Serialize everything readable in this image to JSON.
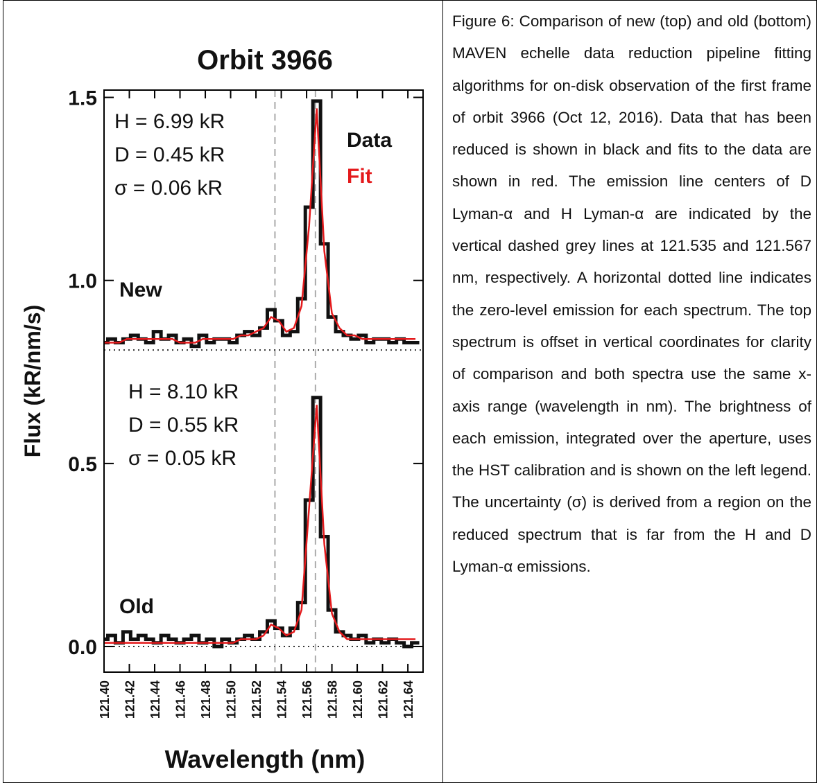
{
  "chart_data": {
    "type": "line",
    "title": "Orbit 3966",
    "ylabel": "Flux (kR/nm/s)",
    "xlabel": "Wavelength (nm)",
    "xlim": [
      121.4,
      121.652
    ],
    "ylim": [
      -0.07,
      1.52
    ],
    "xticks": [
      {
        "value": 121.4,
        "label": "121.40"
      },
      121.42,
      121.44,
      121.46,
      121.48,
      {
        "value": 121.5,
        "label": "121.50"
      },
      121.52,
      121.54,
      121.56,
      121.58,
      {
        "value": 121.6,
        "label": "121.60"
      },
      121.62,
      121.64
    ],
    "yticks": [
      {
        "value": 0,
        "label": "0.0"
      },
      0.5,
      {
        "value": 1,
        "label": "1.0"
      },
      1.5
    ],
    "grid": false,
    "vlines": [
      121.535,
      121.567
    ],
    "legend": [
      {
        "name": "Data",
        "color": "#111111"
      },
      {
        "name": "Fit",
        "color": "#e41a1c"
      }
    ],
    "x": [
      121.4,
      121.406,
      121.412,
      121.418,
      121.424,
      121.43,
      121.436,
      121.442,
      121.448,
      121.454,
      121.46,
      121.466,
      121.472,
      121.478,
      121.484,
      121.49,
      121.496,
      121.502,
      121.508,
      121.514,
      121.52,
      121.526,
      121.532,
      121.538,
      121.544,
      121.55,
      121.556,
      121.562,
      121.568,
      121.574,
      121.58,
      121.586,
      121.592,
      121.598,
      121.604,
      121.61,
      121.616,
      121.622,
      121.628,
      121.634,
      121.64,
      121.646
    ],
    "panels": [
      {
        "label": "New",
        "notes": [
          "H = 6.99 kR",
          "D = 0.45 kR",
          "σ = 0.06 kR"
        ],
        "zero": 0.81,
        "data": [
          0.83,
          0.84,
          0.83,
          0.84,
          0.85,
          0.84,
          0.83,
          0.86,
          0.84,
          0.85,
          0.83,
          0.84,
          0.82,
          0.85,
          0.83,
          0.84,
          0.84,
          0.83,
          0.85,
          0.86,
          0.85,
          0.87,
          0.92,
          0.89,
          0.85,
          0.86,
          0.95,
          1.2,
          1.49,
          1.1,
          0.9,
          0.86,
          0.85,
          0.84,
          0.85,
          0.83,
          0.84,
          0.84,
          0.83,
          0.84,
          0.83,
          0.83
        ],
        "fit": [
          0.83,
          0.83,
          0.83,
          0.84,
          0.84,
          0.84,
          0.84,
          0.84,
          0.84,
          0.84,
          0.83,
          0.83,
          0.83,
          0.84,
          0.84,
          0.84,
          0.84,
          0.84,
          0.85,
          0.85,
          0.86,
          0.87,
          0.9,
          0.89,
          0.86,
          0.87,
          0.93,
          1.15,
          1.47,
          1.08,
          0.91,
          0.87,
          0.85,
          0.85,
          0.84,
          0.84,
          0.84,
          0.84,
          0.84,
          0.84,
          0.84,
          0.84
        ]
      },
      {
        "label": "Old",
        "notes": [
          "H = 8.10 kR",
          "D = 0.55 kR",
          "σ = 0.05 kR"
        ],
        "zero": 0,
        "data": [
          0.02,
          0.03,
          0.01,
          0.04,
          0.02,
          0.03,
          0.02,
          0.01,
          0.03,
          0.02,
          0.01,
          0.02,
          0.03,
          0.01,
          0.02,
          0.0,
          0.02,
          0.01,
          0.02,
          0.03,
          0.02,
          0.04,
          0.07,
          0.05,
          0.03,
          0.05,
          0.12,
          0.4,
          0.68,
          0.3,
          0.1,
          0.04,
          0.03,
          0.02,
          0.03,
          0.01,
          0.02,
          0.01,
          0.02,
          0.01,
          0.0,
          0.01
        ],
        "fit": [
          0.01,
          0.01,
          0.01,
          0.01,
          0.01,
          0.01,
          0.01,
          0.01,
          0.01,
          0.01,
          0.01,
          0.01,
          0.01,
          0.01,
          0.01,
          0.01,
          0.01,
          0.01,
          0.02,
          0.02,
          0.02,
          0.03,
          0.06,
          0.05,
          0.03,
          0.04,
          0.1,
          0.38,
          0.66,
          0.28,
          0.09,
          0.04,
          0.02,
          0.02,
          0.02,
          0.02,
          0.02,
          0.02,
          0.02,
          0.02,
          0.02,
          0.02
        ]
      }
    ]
  },
  "caption": "Figure 6: Comparison of new (top) and old (bottom) MAVEN echelle data reduction pipeline fitting algorithms for on-disk observation of the first frame of orbit 3966 (Oct 12, 2016). Data that has been reduced is shown in black and fits to the data are shown in red. The emission line centers of D Lyman-α and H Lyman-α are indicated by the vertical dashed grey lines at 121.535 and 121.567 nm, respectively. A horizontal dotted line indicates the zero-level emission for each spectrum. The top spectrum is offset in vertical coordinates for clarity of comparison and both spectra use the same x-axis range (wavelength in nm). The brightness of each emission, integrated over the aperture, uses the HST calibration and is shown on the left legend. The uncertainty (σ) is derived from a region on the reduced spectrum that is far from the H and D Lyman-α emissions."
}
